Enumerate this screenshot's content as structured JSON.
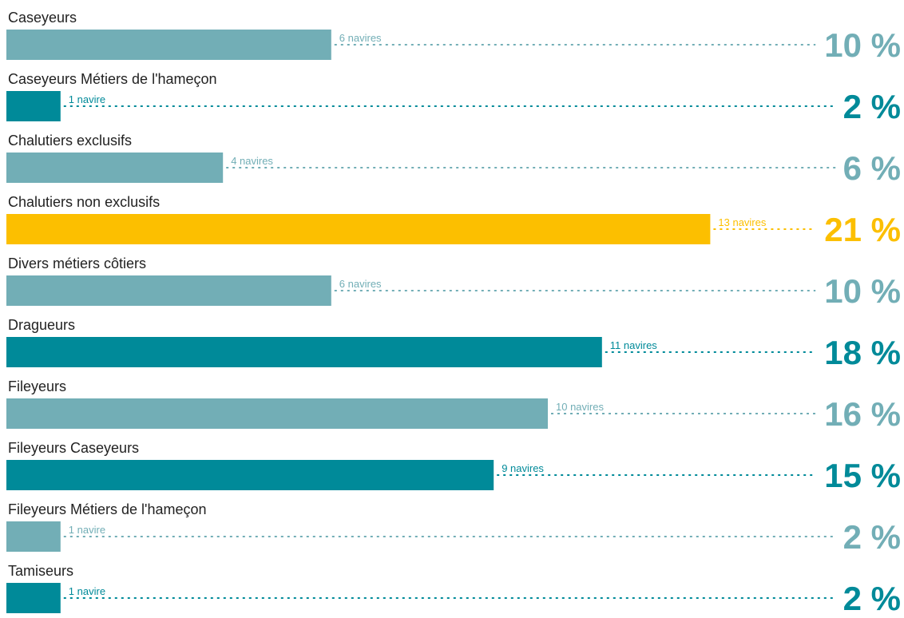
{
  "chart_data": {
    "type": "bar",
    "orientation": "horizontal",
    "categories": [
      "Caseyeurs",
      "Caseyeurs Métiers de l'hameçon",
      "Chalutiers exclusifs",
      "Chalutiers non exclusifs",
      "Divers métiers côtiers",
      "Dragueurs",
      "Fileyeurs",
      "Fileyeurs Caseyeurs",
      "Fileyeurs Métiers de l'hameçon",
      "Tamiseurs"
    ],
    "values": [
      6,
      1,
      4,
      13,
      6,
      11,
      10,
      9,
      1,
      1
    ],
    "count_labels": [
      "6 navires",
      "1 navire",
      "4 navires",
      "13 navires",
      "6 navires",
      "11 navires",
      "10 navires",
      "9 navires",
      "1 navire",
      "1 navire"
    ],
    "percentages": [
      10,
      2,
      6,
      21,
      10,
      18,
      16,
      15,
      2,
      2
    ],
    "percent_labels": [
      "10 %",
      "2 %",
      "6 %",
      "21 %",
      "10 %",
      "18 %",
      "16 %",
      "15 %",
      "2 %",
      "2 %"
    ],
    "value_max": 13,
    "highlight_index": 3,
    "colors": {
      "light": "#72aeb6",
      "dark": "#008a99",
      "highlight": "#fcbf00",
      "category_text": "#222222"
    },
    "color_pattern": [
      "light",
      "dark",
      "light",
      "highlight",
      "light",
      "dark",
      "light",
      "dark",
      "light",
      "dark"
    ],
    "grid": false,
    "legend": "none"
  }
}
